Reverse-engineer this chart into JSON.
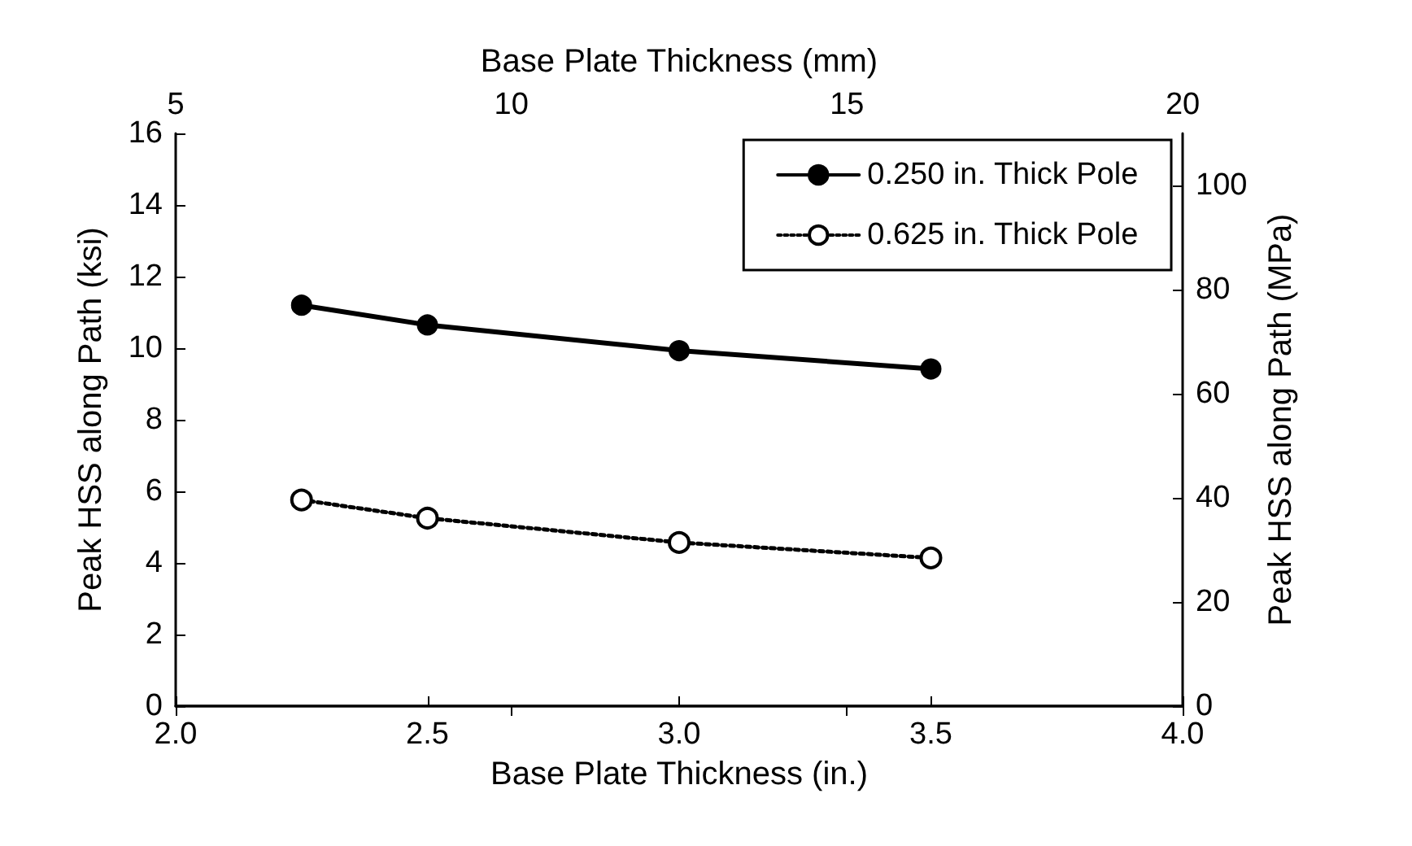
{
  "chart_data": {
    "type": "line",
    "xlabel": "Base Plate Thickness (in.)",
    "ylabel": "Peak HSS along Path (ksi)",
    "y2label": "Peak HSS along Path (MPa)",
    "x2label": "Base Plate Thickness (mm)",
    "x": [
      2.25,
      2.5,
      3.0,
      3.5
    ],
    "series": [
      {
        "name": "0.250 in. Thick Pole",
        "color": "#000000",
        "values": [
          11.2,
          10.65,
          9.93,
          9.42
        ],
        "line_style": "solid",
        "marker": "circle"
      },
      {
        "name": "0.625 in. Thick Pole",
        "color": "#000000",
        "values": [
          5.76,
          5.25,
          4.57,
          4.14
        ],
        "line_style": "dotted",
        "marker": "circle"
      }
    ],
    "xlim": [
      2,
      4
    ],
    "xticks": [
      {
        "value": 2,
        "label": "2.0"
      },
      {
        "value": 2.5,
        "label": "2.5"
      },
      {
        "value": 3,
        "label": "3.0"
      },
      {
        "value": 3.5,
        "label": "3.5"
      },
      {
        "value": 4,
        "label": "4.0"
      }
    ],
    "ylim": [
      0,
      16
    ],
    "yticks": [
      0,
      2,
      4,
      6,
      8,
      10,
      12,
      14,
      16
    ],
    "y2lim": [
      0,
      110
    ],
    "y2ticks": [
      0,
      20,
      40,
      60,
      80,
      100
    ],
    "x2lim": [
      5,
      20
    ],
    "x2ticks": [
      5,
      10,
      15,
      20
    ],
    "legend": "top right",
    "grid": false
  }
}
